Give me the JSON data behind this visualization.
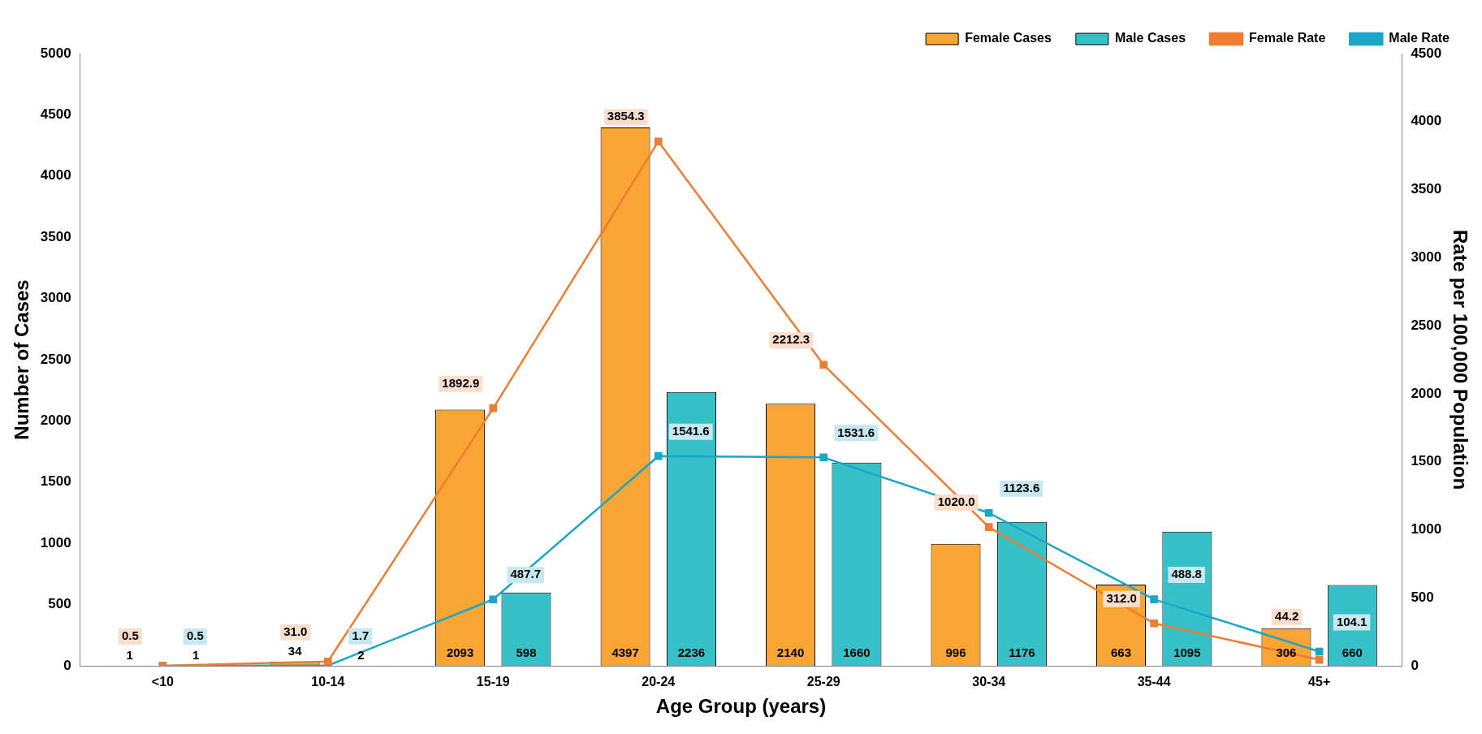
{
  "chart_data": {
    "type": "bar",
    "xlabel": "Age Group (years)",
    "ylabel": "Number of Cases",
    "y2label": "Rate per 100,000 Population",
    "categories": [
      "<10",
      "10-14",
      "15-19",
      "20-24",
      "25-29",
      "30-34",
      "35-44",
      "45+"
    ],
    "series": [
      {
        "name": "Female Cases",
        "color": "#f9a533",
        "values": [
          1,
          34,
          2093,
          4397,
          2140,
          996,
          663,
          306
        ],
        "value_labels": [
          "1",
          "34",
          "2093",
          "4397",
          "2140",
          "996",
          "663",
          "306"
        ]
      },
      {
        "name": "Male Cases",
        "color": "#36c1c8",
        "values": [
          1,
          2,
          598,
          2236,
          1660,
          1176,
          1095,
          660
        ],
        "value_labels": [
          "1",
          "2",
          "598",
          "2236",
          "1660",
          "1176",
          "1095",
          "660"
        ]
      },
      {
        "name": "Female Rate",
        "type": "line",
        "axis": "y2",
        "color": "#ed7d31",
        "values": [
          0.5,
          31.0,
          1892.9,
          3854.3,
          2212.3,
          1020.0,
          312.0,
          44.2
        ],
        "value_labels": [
          "0.5",
          "31.0",
          "1892.9",
          "3854.3",
          "2212.3",
          "1020.0",
          "312.0",
          "44.2"
        ]
      },
      {
        "name": "Male Rate",
        "type": "line",
        "axis": "y2",
        "color": "#1aa6c8",
        "values": [
          0.5,
          1.7,
          487.7,
          1541.6,
          1531.6,
          1123.6,
          488.8,
          104.1
        ],
        "value_labels": [
          "0.5",
          "1.7",
          "487.7",
          "1541.6",
          "1531.6",
          "1123.6",
          "488.8",
          "104.1"
        ]
      }
    ],
    "ylim": [
      0,
      5000
    ],
    "yticks": [
      0,
      500,
      1000,
      1500,
      2000,
      2500,
      3000,
      3500,
      4000,
      4500,
      5000
    ],
    "y2lim": [
      0,
      4500
    ],
    "y2ticks": [
      0,
      500,
      1000,
      1500,
      2000,
      2500,
      3000,
      3500,
      4000,
      4500
    ],
    "grid": false,
    "legend": "top right",
    "marker": "square",
    "line_style": "solid"
  }
}
